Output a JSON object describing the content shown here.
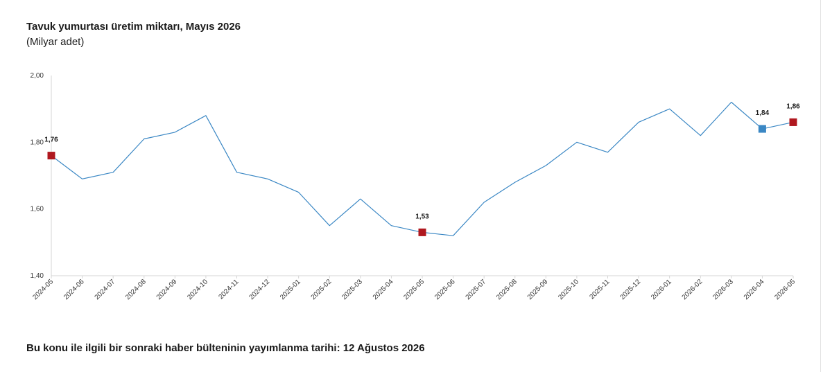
{
  "header": {
    "clipped_text": ""
  },
  "chart_data": {
    "type": "line",
    "title": "Tavuk yumurtası üretim miktarı, Mayıs 2026",
    "subtitle": "(Milyar adet)",
    "xlabel": "",
    "ylabel": "",
    "ylim": [
      1.4,
      2.0
    ],
    "yticks": [
      "1,40",
      "1,60",
      "1,80",
      "2,00"
    ],
    "ytick_values": [
      1.4,
      1.6,
      1.8,
      2.0
    ],
    "grid": false,
    "categories": [
      "2024-05",
      "2024-06",
      "2024-07",
      "2024-08",
      "2024-09",
      "2024-10",
      "2024-11",
      "2024-12",
      "2025-01",
      "2025-02",
      "2025-03",
      "2025-04",
      "2025-05",
      "2025-06",
      "2025-07",
      "2025-08",
      "2025-09",
      "2025-10",
      "2025-11",
      "2025-12",
      "2026-01",
      "2026-02",
      "2026-03",
      "2026-04",
      "2026-05"
    ],
    "values": [
      1.76,
      1.69,
      1.71,
      1.81,
      1.83,
      1.88,
      1.71,
      1.69,
      1.65,
      1.55,
      1.63,
      1.55,
      1.53,
      1.52,
      1.62,
      1.68,
      1.73,
      1.8,
      1.77,
      1.86,
      1.9,
      1.82,
      1.92,
      1.84,
      1.86
    ],
    "line_color": "#3a87c4",
    "highlights": [
      {
        "category": "2024-05",
        "label": "1,76",
        "color": "#b0181f"
      },
      {
        "category": "2025-05",
        "label": "1,53",
        "color": "#b0181f"
      },
      {
        "category": "2026-04",
        "label": "1,84",
        "color": "#3a87c4"
      },
      {
        "category": "2026-05",
        "label": "1,86",
        "color": "#b0181f"
      }
    ]
  },
  "footer": {
    "next_release": "Bu konu ile ilgili bir sonraki haber bülteninin yayımlanma tarihi: 12 Ağustos 2026"
  }
}
